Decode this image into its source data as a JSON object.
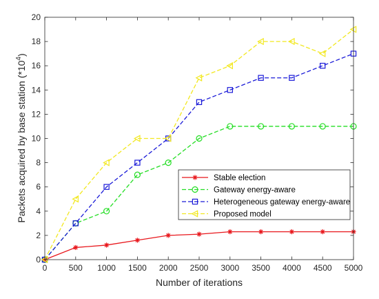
{
  "chart_data": {
    "type": "line",
    "x": [
      0,
      500,
      1000,
      1500,
      2000,
      2500,
      3000,
      3500,
      4000,
      4500,
      5000
    ],
    "xlabel": "Number of iterations",
    "ylabel_main": "Packets acquired by base station (*10",
    "ylabel_exp": "4",
    "ylabel_close": ")",
    "xlim": [
      0,
      5000
    ],
    "ylim": [
      0,
      20
    ],
    "xticks": [
      "0",
      "500",
      "1000",
      "1500",
      "2000",
      "2500",
      "3000",
      "3500",
      "4000",
      "4500",
      "5000"
    ],
    "yticks": [
      "0",
      "2",
      "4",
      "6",
      "8",
      "10",
      "12",
      "14",
      "16",
      "18",
      "20"
    ],
    "grid": false,
    "legend_position": "lower-right",
    "series": [
      {
        "name": "Stable election",
        "color": "#e8161b",
        "line": "solid",
        "marker": "asterisk",
        "values": [
          0,
          1.0,
          1.2,
          1.6,
          2.0,
          2.1,
          2.3,
          2.3,
          2.3,
          2.3,
          2.3
        ]
      },
      {
        "name": "Gateway energy-aware",
        "color": "#22dd22",
        "line": "dashed",
        "marker": "circle",
        "values": [
          0,
          3.0,
          4.0,
          7.0,
          8.0,
          10.0,
          11.0,
          11.0,
          11.0,
          11.0,
          11.0
        ]
      },
      {
        "name": "Heterogeneous gateway energy-aware",
        "color": "#1a1ad8",
        "line": "dashed",
        "marker": "square",
        "values": [
          0,
          3.0,
          6.0,
          8.0,
          10.0,
          13.0,
          14.0,
          15.0,
          15.0,
          16.0,
          17.0
        ]
      },
      {
        "name": "Proposed model",
        "color": "#f2e81f",
        "line": "dashed",
        "marker": "triangle-left",
        "values": [
          0,
          5.0,
          8.0,
          10.0,
          10.0,
          15.0,
          16.0,
          18.0,
          18.0,
          17.0,
          19.0
        ]
      }
    ]
  }
}
